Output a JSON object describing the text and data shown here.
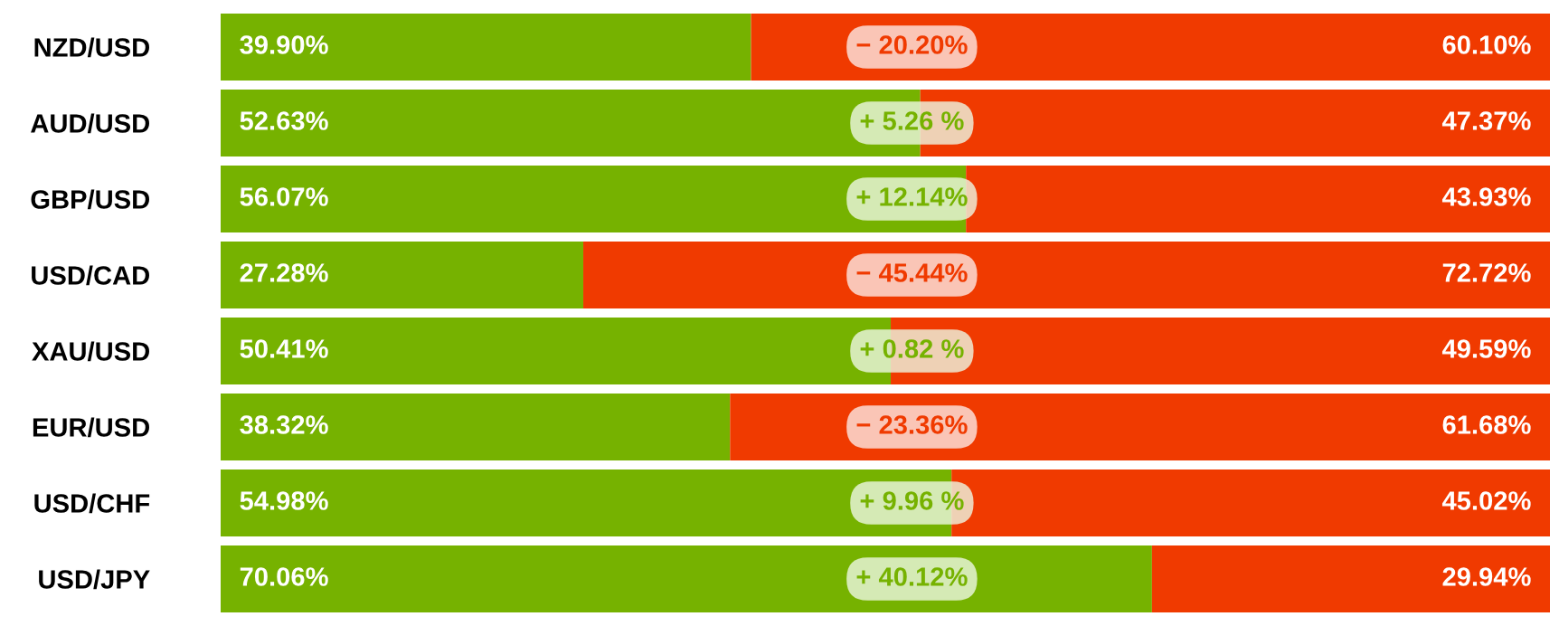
{
  "chart_data": {
    "type": "bar",
    "orientation": "horizontal",
    "stacked": true,
    "categories": [
      "NZD/USD",
      "AUD/USD",
      "GBP/USD",
      "USD/CAD",
      "XAU/USD",
      "EUR/USD",
      "USD/CHF",
      "USD/JPY"
    ],
    "series": [
      {
        "color": "#76b200",
        "values": [
          39.9,
          52.63,
          56.07,
          27.28,
          50.41,
          38.32,
          54.98,
          70.06
        ],
        "value_labels": [
          "39.90%",
          "52.63%",
          "56.07%",
          "27.28%",
          "50.41%",
          "38.32%",
          "54.98%",
          "70.06%"
        ]
      },
      {
        "color": "#f03a00",
        "values": [
          60.1,
          47.37,
          43.93,
          72.72,
          49.59,
          61.68,
          45.02,
          29.94
        ],
        "value_labels": [
          "60.10%",
          "47.37%",
          "43.93%",
          "72.72%",
          "49.59%",
          "61.68%",
          "45.02%",
          "29.94%"
        ]
      }
    ],
    "xlim": [
      0,
      100
    ],
    "annotations": [
      "− 20.20%",
      "+ 5.26 %",
      "+ 12.14%",
      "− 45.44%",
      "+ 0.82 %",
      "− 23.36%",
      "+ 9.96 %",
      "+ 40.12%"
    ],
    "tick_labels": "y",
    "grid": false,
    "legend": false
  }
}
